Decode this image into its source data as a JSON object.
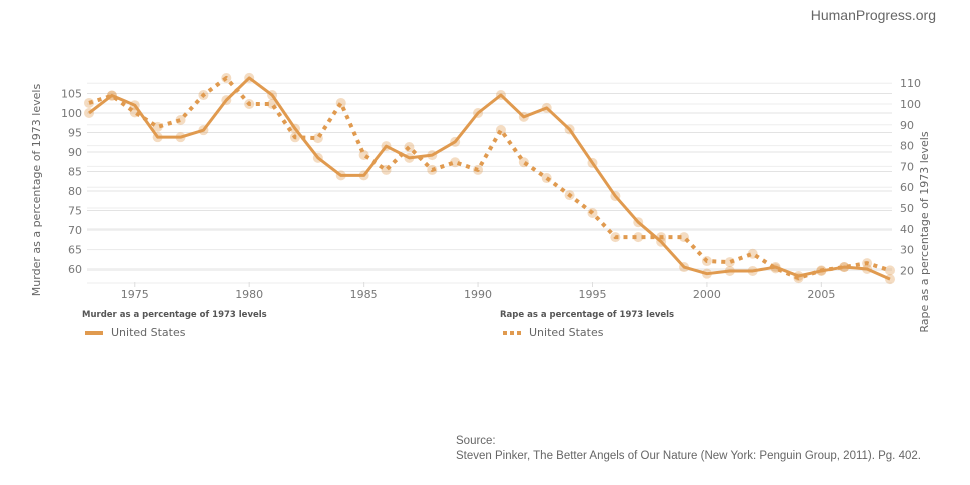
{
  "brand": "HumanProgress.org",
  "source": {
    "label": "Source:",
    "text": "Steven Pinker, The Better Angels of Our Nature (New York: Penguin Group, 2011). Pg. 402."
  },
  "legend": [
    {
      "title": "Murder as a percentage of 1973 levels",
      "item": "United States",
      "style": "solid"
    },
    {
      "title": "Rape as a percentage of 1973 levels",
      "item": "United States",
      "style": "dotted"
    }
  ],
  "chart_data": {
    "type": "line",
    "title": "",
    "xlabel": "",
    "ylabel": "Murder as a percentage of 1973 levels",
    "y2label": "Rape as a percentage of 1973 levels",
    "x": [
      1973,
      1974,
      1975,
      1976,
      1977,
      1978,
      1979,
      1980,
      1981,
      1982,
      1983,
      1984,
      1985,
      1986,
      1987,
      1988,
      1989,
      1990,
      1991,
      1992,
      1993,
      1994,
      1995,
      1996,
      1997,
      1998,
      1999,
      2000,
      2001,
      2002,
      2003,
      2004,
      2005,
      2006,
      2007,
      2008
    ],
    "xlim": [
      1973,
      2008
    ],
    "xticks": [
      1975,
      1980,
      1985,
      1990,
      1995,
      2000,
      2005
    ],
    "ylim": [
      57,
      108
    ],
    "yticks": [
      60,
      65,
      70,
      75,
      80,
      85,
      90,
      95,
      100,
      105
    ],
    "y2lim": [
      14,
      112
    ],
    "y2ticks": [
      20,
      30,
      40,
      50,
      60,
      70,
      80,
      90,
      100,
      110
    ],
    "grid": true,
    "color": "#e09a4f",
    "series": [
      {
        "name": "United States (Murder)",
        "axis": "left",
        "style": "solid",
        "values": [
          100,
          104.5,
          102,
          93.8,
          93.8,
          95.6,
          103.3,
          109,
          104.6,
          96,
          88.5,
          84,
          84,
          91.5,
          88.5,
          89.2,
          92.6,
          100,
          104.6,
          99,
          101.3,
          95.8,
          87.2,
          78.7,
          72,
          67,
          60.5,
          58.8,
          59.5,
          59.5,
          60.5,
          58.2,
          59.5,
          60.5,
          60,
          57.4
        ]
      },
      {
        "name": "United States (Rape)",
        "axis": "right",
        "style": "dotted",
        "values": [
          100.5,
          104,
          96,
          89,
          92.3,
          104.3,
          112.5,
          100,
          100,
          84,
          83.6,
          100.5,
          75.5,
          68.3,
          79.3,
          68.3,
          72,
          68.3,
          87.5,
          72,
          64.4,
          56.2,
          47.6,
          36,
          36,
          36,
          36,
          24.5,
          24,
          28,
          21,
          16.3,
          20,
          21.6,
          23.5,
          20
        ]
      }
    ]
  }
}
